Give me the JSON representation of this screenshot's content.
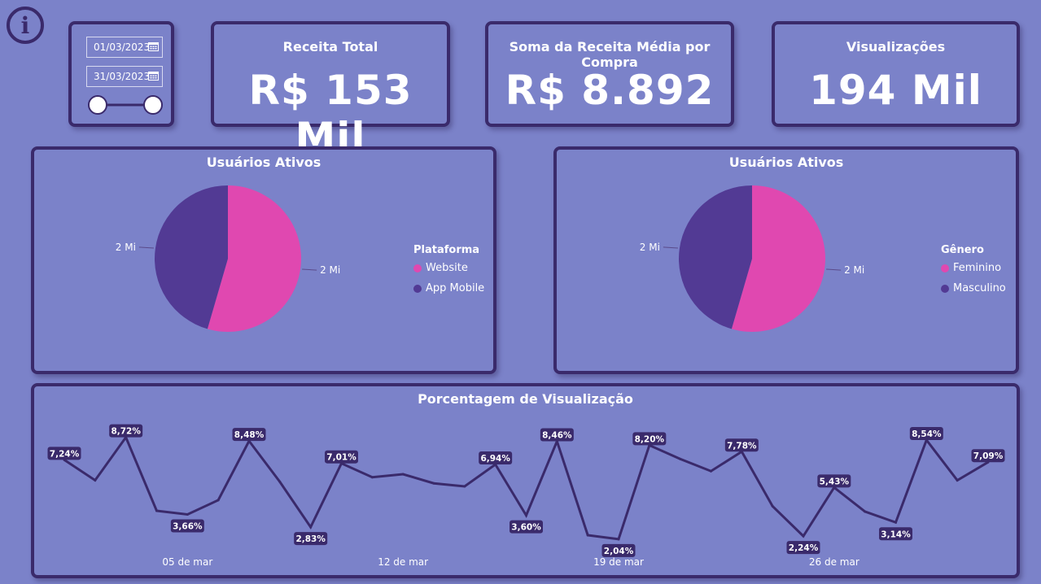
{
  "colors": {
    "background": "#7b82c9",
    "border": "#3a2a6b",
    "pink": "#e048b0",
    "purple": "#523a94",
    "line": "#3a2a6b",
    "label_bg": "#3a2a6b"
  },
  "info_icon": {
    "glyph": "i",
    "icon": "info-icon"
  },
  "date_filter": {
    "start_date": "01/03/2023",
    "end_date": "31/03/2023",
    "range_start": 0.0,
    "range_end": 1.0
  },
  "kpis": [
    {
      "title": "Receita Total",
      "value": "R$ 153 Mil"
    },
    {
      "title": "Soma da Receita Média por Compra",
      "value": "R$ 8.892"
    },
    {
      "title": "Visualizações",
      "value": "194 Mil"
    }
  ],
  "chart_data": [
    {
      "type": "pie",
      "title": "Usuários Ativos",
      "legend_title": "Plataforma",
      "legend_position": "right",
      "slices": [
        {
          "name": "Website",
          "value": 54.5,
          "label": "2 Mi",
          "color": "#e048b0"
        },
        {
          "name": "App Mobile",
          "value": 45.5,
          "label": "2 Mi",
          "color": "#523a94"
        }
      ]
    },
    {
      "type": "pie",
      "title": "Usuários Ativos",
      "legend_title": "Gênero",
      "legend_position": "right",
      "slices": [
        {
          "name": "Feminino",
          "value": 54.5,
          "label": "2 Mi",
          "color": "#e048b0"
        },
        {
          "name": "Masculino",
          "value": 45.5,
          "label": "2 Mi",
          "color": "#523a94"
        }
      ]
    },
    {
      "type": "line",
      "title": "Porcentagem de Visualização",
      "x": [
        1,
        2,
        3,
        4,
        5,
        6,
        7,
        8,
        9,
        10,
        11,
        12,
        13,
        14,
        15,
        16,
        17,
        18,
        19,
        20,
        21,
        22,
        23,
        24,
        25,
        26,
        27,
        28,
        29,
        30,
        31
      ],
      "values": [
        7.24,
        5.9,
        8.72,
        3.9,
        3.66,
        4.6,
        8.48,
        5.8,
        2.83,
        7.01,
        6.1,
        6.3,
        5.7,
        5.5,
        6.94,
        3.6,
        8.46,
        2.3,
        2.04,
        8.2,
        7.3,
        6.5,
        7.78,
        4.2,
        2.24,
        5.43,
        3.85,
        3.14,
        8.54,
        5.9,
        7.09
      ],
      "data_labels": {
        "1": "7,24%",
        "3": "8,72%",
        "5": "3,66%",
        "7": "8,48%",
        "9": "2,83%",
        "10": "7,01%",
        "15": "6,94%",
        "16": "3,60%",
        "17": "8,46%",
        "19": "2,04%",
        "20": "8,20%",
        "23": "7,78%",
        "25": "2,24%",
        "26": "5,43%",
        "28": "3,14%",
        "29": "8,54%",
        "31": "7,09%"
      },
      "x_ticks": [
        {
          "x": 5,
          "label": "05 de mar"
        },
        {
          "x": 12,
          "label": "12 de mar"
        },
        {
          "x": 19,
          "label": "19 de mar"
        },
        {
          "x": 26,
          "label": "26 de mar"
        }
      ],
      "ylim": [
        1.5,
        9.5
      ],
      "grid": false
    }
  ]
}
